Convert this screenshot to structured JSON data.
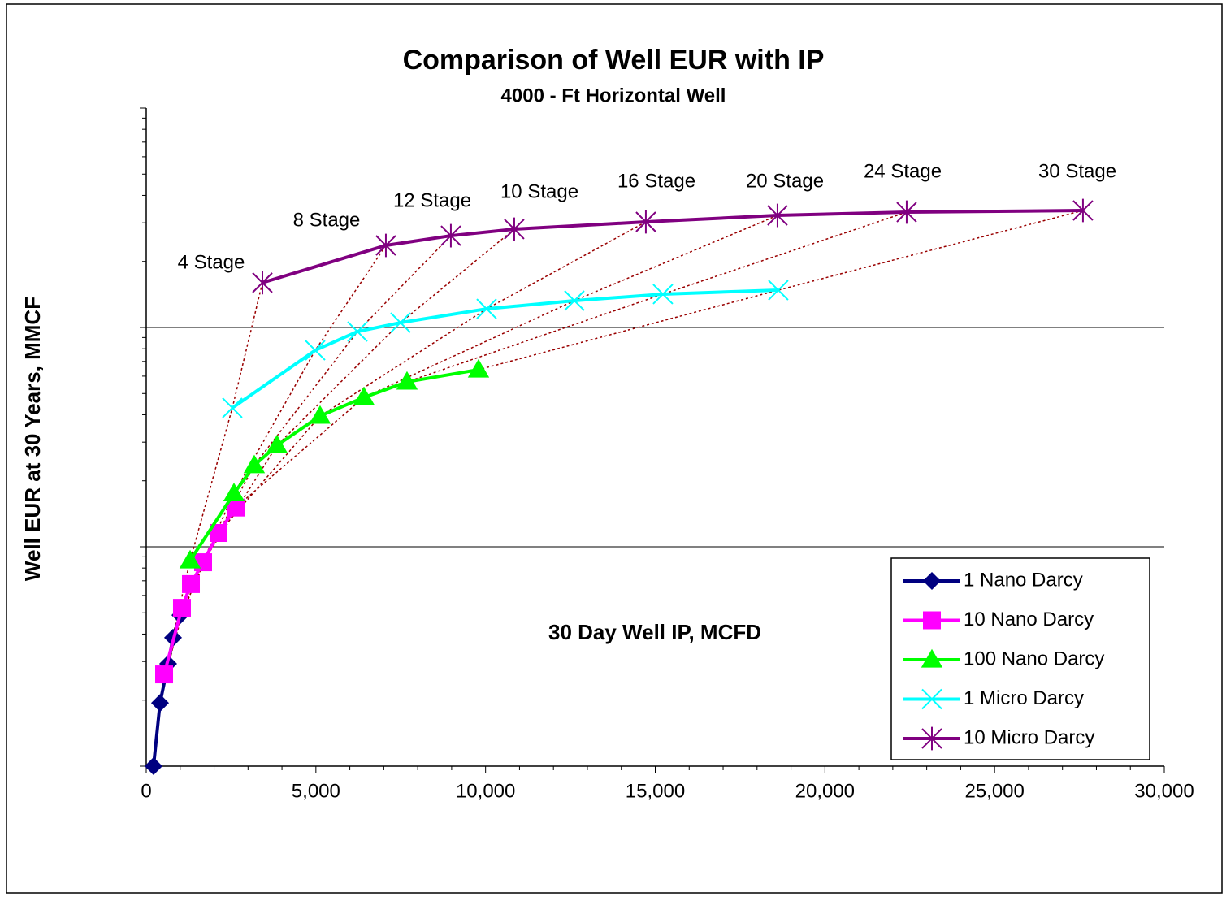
{
  "chart_data": {
    "type": "line",
    "title": "Comparison of Well EUR with IP",
    "subtitle": "4000 - Ft Horizontal Well",
    "xlabel": "30 Day Well IP, MCFD",
    "ylabel": "Well EUR at 30 Years, MMCF",
    "xlim": [
      0,
      30000
    ],
    "xticks": [
      0,
      {
        "value": 5000,
        "label": "5,000"
      },
      {
        "value": 10000,
        "label": "10,000"
      },
      {
        "value": 15000,
        "label": "15,000"
      },
      {
        "value": 20000,
        "label": "20,000"
      },
      {
        "value": 25000,
        "label": "25,000"
      },
      {
        "value": 30000,
        "label": "30,000"
      }
    ],
    "ylim": [
      10,
      10000
    ],
    "yticks": [
      10,
      100,
      1000,
      10000
    ],
    "ylog": true,
    "minor_ticks": true,
    "grid": true,
    "legend": "lower right",
    "series": [
      {
        "name": "1 Nano Darcy",
        "color": "#000080",
        "marker": "diamond",
        "x": [
          215,
          407,
          646,
          790,
          1006
        ],
        "values": [
          10,
          19.4,
          29.3,
          38.5,
          48.8
        ]
      },
      {
        "name": "10 Nano Darcy",
        "color": "#ff00ff",
        "marker": "square",
        "x": [
          527,
          1053,
          1317,
          1676,
          2131,
          2634
        ],
        "values": [
          26.2,
          52.7,
          67.6,
          85,
          115.6,
          151
        ]
      },
      {
        "name": "100 Nano Darcy",
        "color": "#00ff00",
        "marker": "triangle",
        "x": [
          1293,
          2586,
          3184,
          3854,
          5123,
          6416,
          7685,
          9792
        ],
        "values": [
          86.5,
          175,
          235,
          290,
          395,
          480,
          565,
          642
        ]
      },
      {
        "name": "1 Micro Darcy",
        "color": "#00ffff",
        "marker": "x",
        "x": [
          2538,
          4980,
          6225,
          7493,
          10031,
          12617,
          15226,
          18626
        ],
        "values": [
          430,
          787,
          958,
          1052,
          1216,
          1325,
          1419,
          1480
        ]
      },
      {
        "name": "10 Micro Darcy",
        "color": "#800080",
        "marker": "star",
        "x": [
          3424,
          7062,
          8977,
          10845,
          14723,
          18602,
          22409,
          27604
        ],
        "values": [
          1600,
          2366,
          2620,
          2807,
          3030,
          3243,
          3356,
          3415
        ]
      }
    ],
    "annotations": [
      "4 Stage",
      "8 Stage",
      "12 Stage",
      "10 Stage",
      "16 Stage",
      "20 Stage",
      "24 Stage",
      "30 Stage"
    ],
    "connector_color": "#990000"
  }
}
